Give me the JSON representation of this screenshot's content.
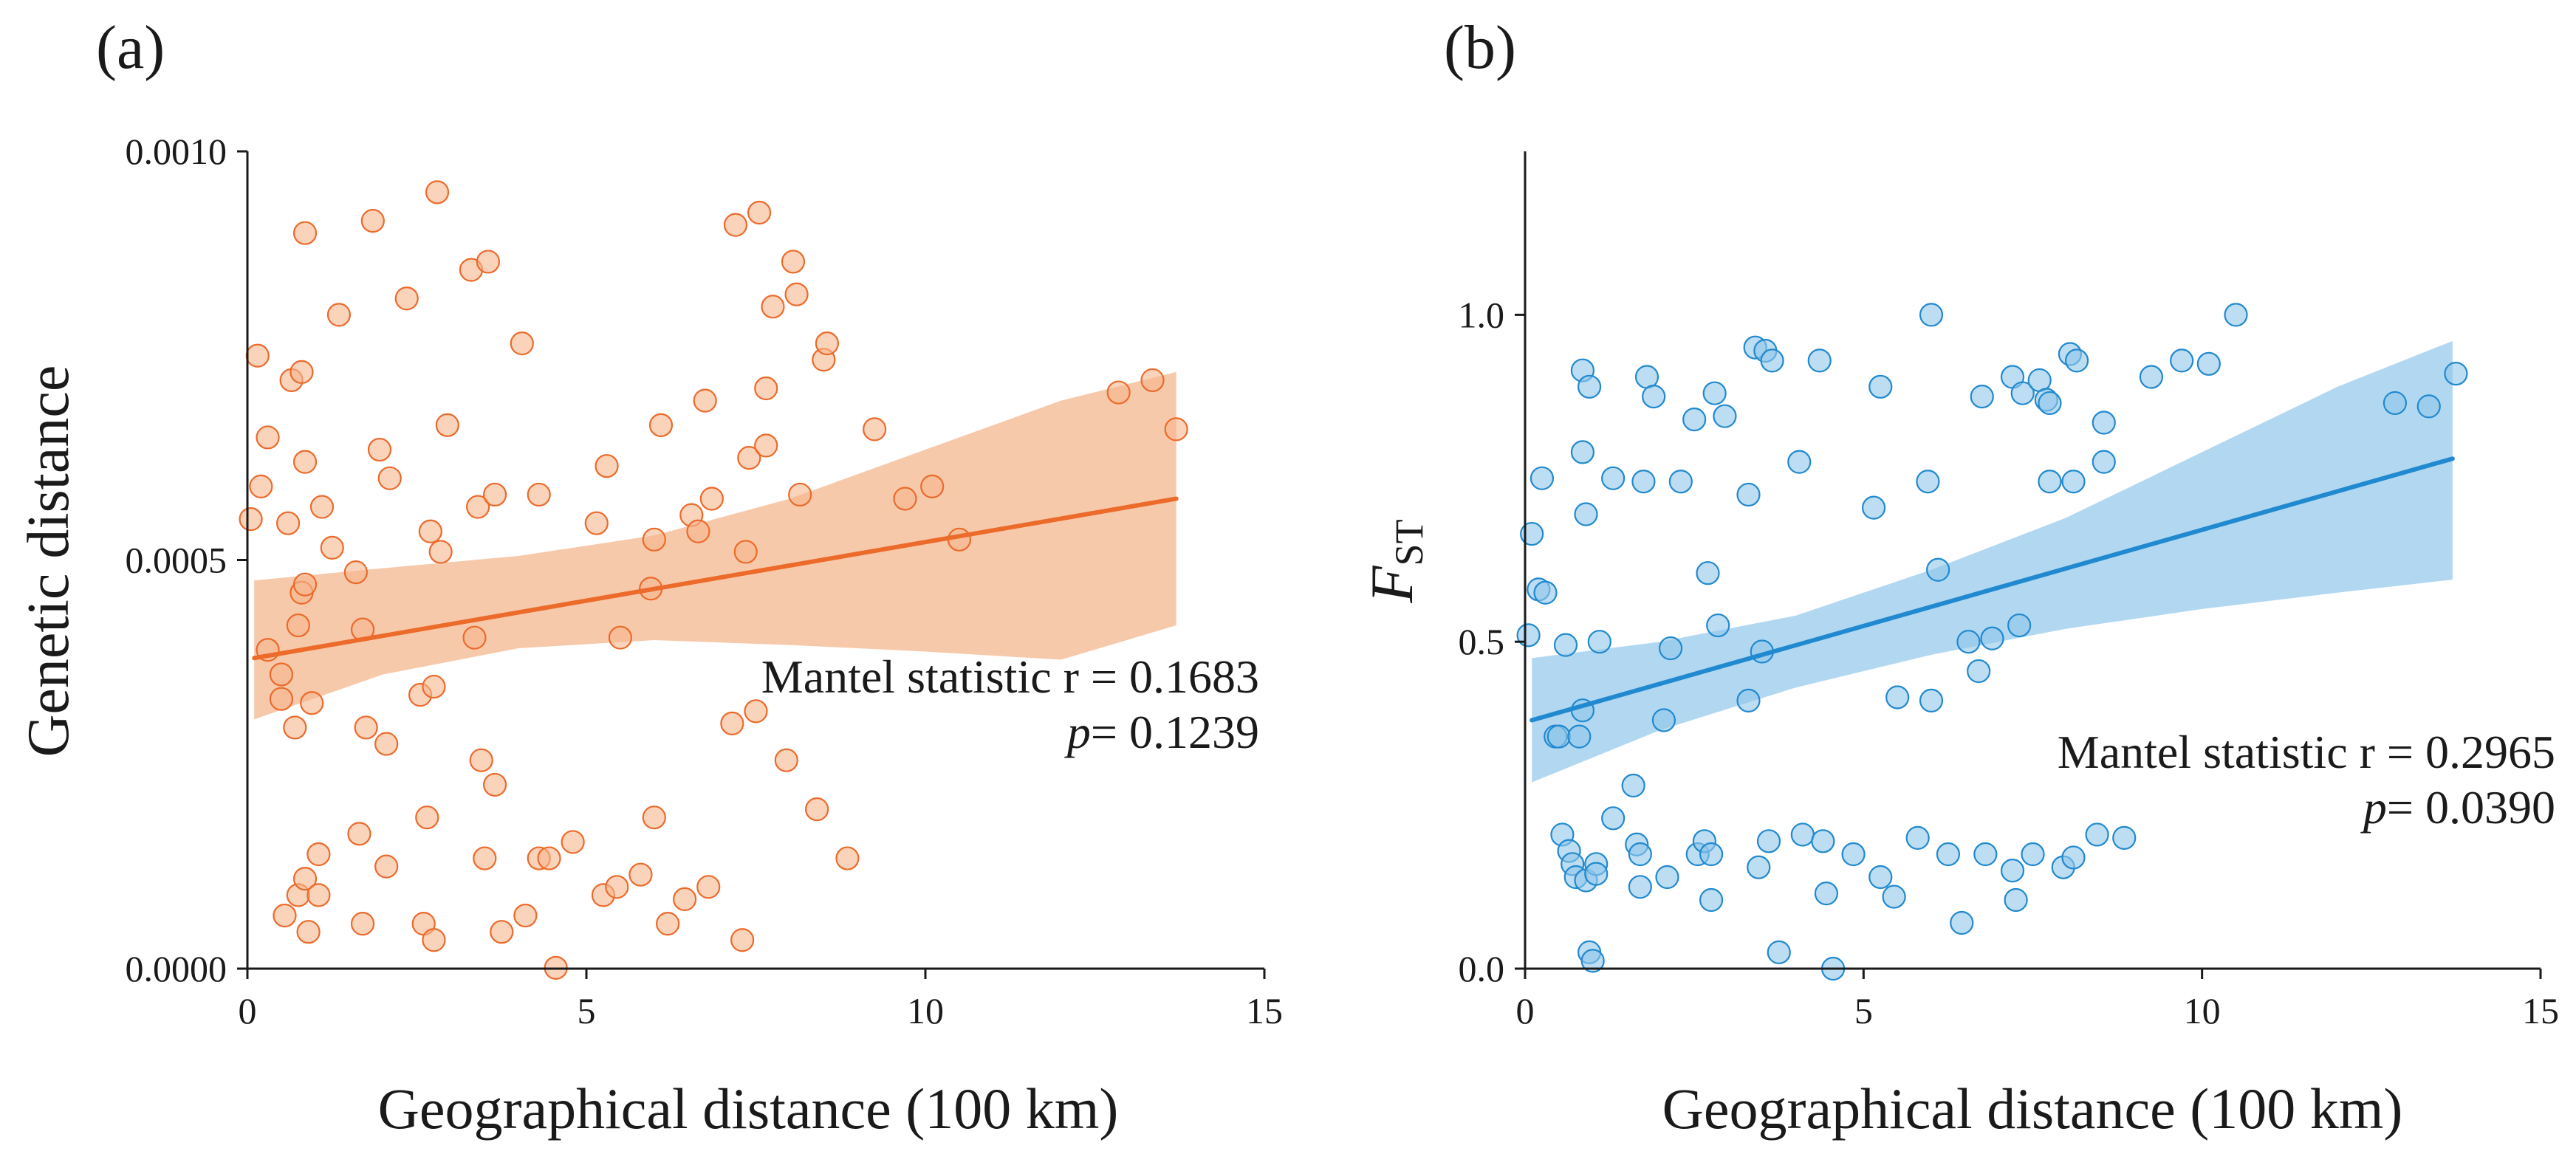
{
  "colors": {
    "panel_a": "#ec6a2a",
    "panel_a_fill": "#f6b68e",
    "panel_a_band": "#f6bf9c",
    "panel_b": "#2189cf",
    "panel_b_fill": "#8fc6ea",
    "panel_b_band": "#a4d1ee",
    "axis": "#1a1a1a"
  },
  "chart_data": [
    {
      "type": "scatter",
      "panel_label": "(a)",
      "xlabel": "Geographical distance (100 km)",
      "ylabel": "Genetic distance",
      "xlim": [
        0,
        15
      ],
      "ylim": [
        0,
        0.001
      ],
      "x_ticks": [
        0,
        5,
        10,
        15
      ],
      "y_ticks": [
        0,
        0.0005,
        0.001
      ],
      "y_tick_labels": [
        "0.0000",
        "0.0005",
        "0.0010"
      ],
      "annotation": {
        "line1": "Mantel statistic r = 0.1683",
        "p_symbol": "p",
        "p_value": "= 0.1239"
      },
      "regression": {
        "x0": 0.1,
        "y0": 0.00038,
        "x1": 13.7,
        "y1": 0.000575
      },
      "confidence_band": {
        "x": [
          0.1,
          2,
          4,
          6,
          8,
          10,
          12,
          13.7
        ],
        "lower": [
          0.000305,
          0.00036,
          0.000392,
          0.000402,
          0.000396,
          0.000388,
          0.000378,
          0.00042
        ],
        "upper": [
          0.000475,
          0.00049,
          0.000505,
          0.00053,
          0.000575,
          0.000635,
          0.000695,
          0.00073
        ]
      },
      "points": [
        {
          "x": 0.05,
          "y": 0.00055
        },
        {
          "x": 0.15,
          "y": 0.00075
        },
        {
          "x": 0.2,
          "y": 0.00059
        },
        {
          "x": 0.3,
          "y": 0.00039
        },
        {
          "x": 0.3,
          "y": 0.00065
        },
        {
          "x": 0.5,
          "y": 0.00036
        },
        {
          "x": 0.5,
          "y": 0.00033
        },
        {
          "x": 0.55,
          "y": 6.5e-05
        },
        {
          "x": 0.6,
          "y": 0.000545
        },
        {
          "x": 0.65,
          "y": 0.00072
        },
        {
          "x": 0.7,
          "y": 0.000295
        },
        {
          "x": 0.75,
          "y": 0.00042
        },
        {
          "x": 0.75,
          "y": 9e-05
        },
        {
          "x": 0.8,
          "y": 0.00046
        },
        {
          "x": 0.8,
          "y": 0.00073
        },
        {
          "x": 0.85,
          "y": 0.0009
        },
        {
          "x": 0.85,
          "y": 0.00047
        },
        {
          "x": 0.85,
          "y": 0.00011
        },
        {
          "x": 0.85,
          "y": 0.00062
        },
        {
          "x": 0.9,
          "y": 4.5e-05
        },
        {
          "x": 0.95,
          "y": 0.000325
        },
        {
          "x": 1.05,
          "y": 0.00014
        },
        {
          "x": 1.05,
          "y": 9e-05
        },
        {
          "x": 1.1,
          "y": 0.000565
        },
        {
          "x": 1.25,
          "y": 0.000515
        },
        {
          "x": 1.35,
          "y": 0.0008
        },
        {
          "x": 1.6,
          "y": 0.000485
        },
        {
          "x": 1.65,
          "y": 0.000165
        },
        {
          "x": 1.7,
          "y": 0.000415
        },
        {
          "x": 1.7,
          "y": 5.5e-05
        },
        {
          "x": 1.75,
          "y": 0.000295
        },
        {
          "x": 1.85,
          "y": 0.000915
        },
        {
          "x": 1.95,
          "y": 0.000635
        },
        {
          "x": 2.05,
          "y": 0.000125
        },
        {
          "x": 2.05,
          "y": 0.000275
        },
        {
          "x": 2.1,
          "y": 0.0006
        },
        {
          "x": 2.35,
          "y": 0.00082
        },
        {
          "x": 2.55,
          "y": 0.000335
        },
        {
          "x": 2.6,
          "y": 5.5e-05
        },
        {
          "x": 2.65,
          "y": 0.000185
        },
        {
          "x": 2.7,
          "y": 0.000535
        },
        {
          "x": 2.75,
          "y": 0.000345
        },
        {
          "x": 2.75,
          "y": 3.5e-05
        },
        {
          "x": 2.8,
          "y": 0.00095
        },
        {
          "x": 2.85,
          "y": 0.00051
        },
        {
          "x": 2.95,
          "y": 0.000665
        },
        {
          "x": 3.3,
          "y": 0.000855
        },
        {
          "x": 3.35,
          "y": 0.000405
        },
        {
          "x": 3.4,
          "y": 0.000565
        },
        {
          "x": 3.45,
          "y": 0.000255
        },
        {
          "x": 3.5,
          "y": 0.000135
        },
        {
          "x": 3.55,
          "y": 0.000865
        },
        {
          "x": 3.65,
          "y": 0.000225
        },
        {
          "x": 3.65,
          "y": 0.00058
        },
        {
          "x": 3.75,
          "y": 4.5e-05
        },
        {
          "x": 4.05,
          "y": 0.000765
        },
        {
          "x": 4.1,
          "y": 6.5e-05
        },
        {
          "x": 4.3,
          "y": 0.00058
        },
        {
          "x": 4.3,
          "y": 0.000135
        },
        {
          "x": 4.45,
          "y": 0.000135
        },
        {
          "x": 4.55,
          "y": 1e-06
        },
        {
          "x": 4.8,
          "y": 0.000155
        },
        {
          "x": 5.15,
          "y": 0.000545
        },
        {
          "x": 5.25,
          "y": 9e-05
        },
        {
          "x": 5.3,
          "y": 0.000615
        },
        {
          "x": 5.45,
          "y": 0.0001
        },
        {
          "x": 5.5,
          "y": 0.000405
        },
        {
          "x": 5.8,
          "y": 0.000115
        },
        {
          "x": 5.95,
          "y": 0.000465
        },
        {
          "x": 6.0,
          "y": 0.000525
        },
        {
          "x": 6.0,
          "y": 0.000185
        },
        {
          "x": 6.1,
          "y": 0.000665
        },
        {
          "x": 6.2,
          "y": 5.5e-05
        },
        {
          "x": 6.45,
          "y": 8.5e-05
        },
        {
          "x": 6.55,
          "y": 0.000555
        },
        {
          "x": 6.65,
          "y": 0.000535
        },
        {
          "x": 6.75,
          "y": 0.000695
        },
        {
          "x": 6.8,
          "y": 0.0001
        },
        {
          "x": 6.85,
          "y": 0.000575
        },
        {
          "x": 7.15,
          "y": 0.0003
        },
        {
          "x": 7.2,
          "y": 0.00091
        },
        {
          "x": 7.3,
          "y": 3.5e-05
        },
        {
          "x": 7.35,
          "y": 0.00051
        },
        {
          "x": 7.4,
          "y": 0.000625
        },
        {
          "x": 7.5,
          "y": 0.000315
        },
        {
          "x": 7.55,
          "y": 0.000925
        },
        {
          "x": 7.65,
          "y": 0.00064
        },
        {
          "x": 7.65,
          "y": 0.00071
        },
        {
          "x": 7.75,
          "y": 0.00081
        },
        {
          "x": 7.95,
          "y": 0.000255
        },
        {
          "x": 8.05,
          "y": 0.000865
        },
        {
          "x": 8.1,
          "y": 0.000825
        },
        {
          "x": 8.15,
          "y": 0.00058
        },
        {
          "x": 8.4,
          "y": 0.000195
        },
        {
          "x": 8.5,
          "y": 0.000745
        },
        {
          "x": 8.55,
          "y": 0.000765
        },
        {
          "x": 8.85,
          "y": 0.000135
        },
        {
          "x": 9.25,
          "y": 0.00066
        },
        {
          "x": 9.7,
          "y": 0.000575
        },
        {
          "x": 10.1,
          "y": 0.00059
        },
        {
          "x": 10.5,
          "y": 0.000525
        },
        {
          "x": 12.85,
          "y": 0.000705
        },
        {
          "x": 13.35,
          "y": 0.00072
        },
        {
          "x": 13.7,
          "y": 0.00066
        }
      ]
    },
    {
      "type": "scatter",
      "panel_label": "(b)",
      "xlabel": "Geographical distance (100 km)",
      "ylabel_main": "F",
      "ylabel_sub": "ST",
      "xlim": [
        0,
        15
      ],
      "ylim": [
        0,
        1.25
      ],
      "x_ticks": [
        0,
        5,
        10,
        15
      ],
      "y_ticks": [
        0,
        0.5,
        1.0
      ],
      "y_tick_labels": [
        "0.0",
        "0.5",
        "1.0"
      ],
      "annotation": {
        "line1": "Mantel statistic r = 0.2965",
        "p_symbol": "p",
        "p_value": "= 0.0390"
      },
      "regression": {
        "x0": 0.1,
        "y0": 0.38,
        "x1": 13.7,
        "y1": 0.78
      },
      "confidence_band": {
        "x": [
          0.1,
          2,
          4,
          6,
          8,
          10,
          12,
          13.7
        ],
        "lower": [
          0.285,
          0.365,
          0.43,
          0.48,
          0.52,
          0.55,
          0.575,
          0.595
        ],
        "upper": [
          0.475,
          0.5,
          0.54,
          0.61,
          0.69,
          0.79,
          0.89,
          0.96
        ]
      },
      "points": [
        {
          "x": 0.05,
          "y": 0.51
        },
        {
          "x": 0.1,
          "y": 0.665
        },
        {
          "x": 0.2,
          "y": 0.58
        },
        {
          "x": 0.25,
          "y": 0.75
        },
        {
          "x": 0.3,
          "y": 0.575
        },
        {
          "x": 0.45,
          "y": 0.355
        },
        {
          "x": 0.5,
          "y": 0.355
        },
        {
          "x": 0.55,
          "y": 0.205
        },
        {
          "x": 0.6,
          "y": 0.495
        },
        {
          "x": 0.65,
          "y": 0.18
        },
        {
          "x": 0.7,
          "y": 0.16
        },
        {
          "x": 0.75,
          "y": 0.14
        },
        {
          "x": 0.8,
          "y": 0.355
        },
        {
          "x": 0.85,
          "y": 0.395
        },
        {
          "x": 0.85,
          "y": 0.915
        },
        {
          "x": 0.85,
          "y": 0.79
        },
        {
          "x": 0.9,
          "y": 0.695
        },
        {
          "x": 0.9,
          "y": 0.135
        },
        {
          "x": 0.95,
          "y": 0.89
        },
        {
          "x": 0.95,
          "y": 0.025
        },
        {
          "x": 1.0,
          "y": 0.012
        },
        {
          "x": 1.05,
          "y": 0.16
        },
        {
          "x": 1.05,
          "y": 0.145
        },
        {
          "x": 1.1,
          "y": 0.5
        },
        {
          "x": 1.3,
          "y": 0.23
        },
        {
          "x": 1.3,
          "y": 0.75
        },
        {
          "x": 1.6,
          "y": 0.28
        },
        {
          "x": 1.65,
          "y": 0.19
        },
        {
          "x": 1.7,
          "y": 0.175
        },
        {
          "x": 1.7,
          "y": 0.125
        },
        {
          "x": 1.75,
          "y": 0.745
        },
        {
          "x": 1.8,
          "y": 0.905
        },
        {
          "x": 1.9,
          "y": 0.875
        },
        {
          "x": 2.05,
          "y": 0.38
        },
        {
          "x": 2.1,
          "y": 0.14
        },
        {
          "x": 2.15,
          "y": 0.49
        },
        {
          "x": 2.3,
          "y": 0.745
        },
        {
          "x": 2.5,
          "y": 0.84
        },
        {
          "x": 2.55,
          "y": 0.175
        },
        {
          "x": 2.65,
          "y": 0.195
        },
        {
          "x": 2.7,
          "y": 0.605
        },
        {
          "x": 2.75,
          "y": 0.175
        },
        {
          "x": 2.75,
          "y": 0.105
        },
        {
          "x": 2.8,
          "y": 0.88
        },
        {
          "x": 2.85,
          "y": 0.525
        },
        {
          "x": 2.95,
          "y": 0.845
        },
        {
          "x": 3.3,
          "y": 0.41
        },
        {
          "x": 3.3,
          "y": 0.725
        },
        {
          "x": 3.4,
          "y": 0.95
        },
        {
          "x": 3.45,
          "y": 0.155
        },
        {
          "x": 3.5,
          "y": 0.485
        },
        {
          "x": 3.55,
          "y": 0.945
        },
        {
          "x": 3.6,
          "y": 0.195
        },
        {
          "x": 3.65,
          "y": 0.93
        },
        {
          "x": 3.75,
          "y": 0.025
        },
        {
          "x": 4.05,
          "y": 0.775
        },
        {
          "x": 4.1,
          "y": 0.205
        },
        {
          "x": 4.35,
          "y": 0.93
        },
        {
          "x": 4.4,
          "y": 0.195
        },
        {
          "x": 4.45,
          "y": 0.115
        },
        {
          "x": 4.55,
          "y": 0.0
        },
        {
          "x": 4.85,
          "y": 0.175
        },
        {
          "x": 5.15,
          "y": 0.705
        },
        {
          "x": 5.25,
          "y": 0.14
        },
        {
          "x": 5.25,
          "y": 0.89
        },
        {
          "x": 5.45,
          "y": 0.11
        },
        {
          "x": 5.5,
          "y": 0.415
        },
        {
          "x": 5.8,
          "y": 0.2
        },
        {
          "x": 5.95,
          "y": 0.745
        },
        {
          "x": 6.0,
          "y": 1.0
        },
        {
          "x": 6.0,
          "y": 0.41
        },
        {
          "x": 6.1,
          "y": 0.61
        },
        {
          "x": 6.25,
          "y": 0.175
        },
        {
          "x": 6.45,
          "y": 0.07
        },
        {
          "x": 6.55,
          "y": 0.5
        },
        {
          "x": 6.7,
          "y": 0.455
        },
        {
          "x": 6.75,
          "y": 0.875
        },
        {
          "x": 6.8,
          "y": 0.175
        },
        {
          "x": 6.9,
          "y": 0.505
        },
        {
          "x": 7.2,
          "y": 0.905
        },
        {
          "x": 7.2,
          "y": 0.15
        },
        {
          "x": 7.25,
          "y": 0.105
        },
        {
          "x": 7.3,
          "y": 0.525
        },
        {
          "x": 7.35,
          "y": 0.88
        },
        {
          "x": 7.5,
          "y": 0.175
        },
        {
          "x": 7.6,
          "y": 0.9
        },
        {
          "x": 7.7,
          "y": 0.87
        },
        {
          "x": 7.75,
          "y": 0.745
        },
        {
          "x": 7.75,
          "y": 0.865
        },
        {
          "x": 7.95,
          "y": 0.155
        },
        {
          "x": 8.05,
          "y": 0.94
        },
        {
          "x": 8.1,
          "y": 0.745
        },
        {
          "x": 8.1,
          "y": 0.17
        },
        {
          "x": 8.15,
          "y": 0.93
        },
        {
          "x": 8.45,
          "y": 0.205
        },
        {
          "x": 8.55,
          "y": 0.835
        },
        {
          "x": 8.55,
          "y": 0.775
        },
        {
          "x": 8.85,
          "y": 0.2
        },
        {
          "x": 9.25,
          "y": 0.905
        },
        {
          "x": 9.7,
          "y": 0.93
        },
        {
          "x": 10.1,
          "y": 0.925
        },
        {
          "x": 10.5,
          "y": 1.0
        },
        {
          "x": 12.85,
          "y": 0.865
        },
        {
          "x": 13.35,
          "y": 0.86
        },
        {
          "x": 13.75,
          "y": 0.91
        }
      ]
    }
  ]
}
